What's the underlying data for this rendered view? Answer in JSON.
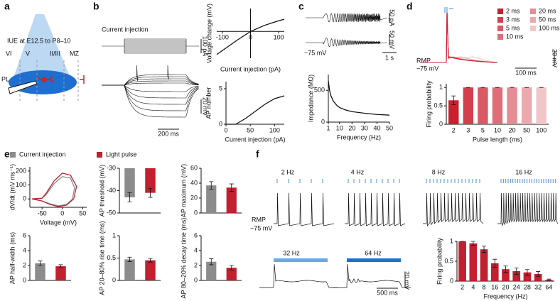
{
  "panel_labels": [
    "a",
    "b",
    "c",
    "d",
    "e",
    "f"
  ],
  "schematic": {
    "title": "IUE at E12.5 to P8–10",
    "layers": [
      "VI",
      "V",
      "II/III",
      "MZ"
    ],
    "region": "PL"
  },
  "traces": {
    "b_stim": "Current injection",
    "b_stim_scale": "100 pA",
    "b_v_scale": "20 mV",
    "b_t_scale": "200 ms",
    "c_i_scale": "50 pA",
    "c_v_scale": "50 mV",
    "c_rest": "−75 mV",
    "c_t_scale": "1 s",
    "d_rmp": "RMP",
    "d_rest": "−75 mV",
    "d_t_scale": "100 ms",
    "d_v_scale": "20 mV",
    "d_legend": [
      {
        "label": "2 ms",
        "color": "#c8202f"
      },
      {
        "label": "3 ms",
        "color": "#d2404c"
      },
      {
        "label": "5 ms",
        "color": "#d95a65"
      },
      {
        "label": "10 ms",
        "color": "#de6e78"
      },
      {
        "label": "20 ms",
        "color": "#e58c94"
      },
      {
        "label": "50 ms",
        "color": "#eba9ae"
      },
      {
        "label": "100 ms",
        "color": "#f0c6c9"
      }
    ],
    "f_rates": [
      "2 Hz",
      "4 Hz",
      "8 Hz",
      "16 Hz",
      "32 Hz",
      "64 Hz"
    ],
    "f_rmp": "RMP",
    "f_rest": "−75 mV",
    "f_v_scale": "20 mV",
    "f_t_scale": "500 ms"
  },
  "legend": {
    "items": [
      {
        "label": "Current injection",
        "color": "#8c8c8c"
      },
      {
        "label": "Light pulse",
        "color": "#c0202f"
      }
    ]
  },
  "chart_data": [
    {
      "type": "line",
      "xlabel": "Current injection (pA)",
      "ylabel": "Voltage change (mV)",
      "axes_cross_zero": true,
      "x": [
        -120,
        -100,
        -50,
        0,
        50,
        100,
        120
      ],
      "values": [
        -30,
        -25,
        -12,
        0,
        8,
        14,
        16
      ],
      "color": "#111111",
      "xlim": [
        -120,
        120
      ],
      "xticks": [
        -100,
        0,
        100
      ],
      "ylim": [
        -35,
        30
      ]
    },
    {
      "type": "line",
      "xlabel": "Current injection (pA)",
      "ylabel": "AP number",
      "x": [
        0,
        20,
        40,
        60,
        80,
        100,
        120
      ],
      "values": [
        0,
        0,
        0.8,
        1.8,
        2.8,
        3.6,
        4
      ],
      "color": "#111111",
      "xlim": [
        0,
        120
      ],
      "xticks": [
        0,
        50,
        100
      ],
      "ylim": [
        0,
        6
      ],
      "yticks": [
        0,
        5
      ]
    },
    {
      "type": "line",
      "xlabel": "Frequency (Hz)",
      "ylabel": "Impedance (MΩ)",
      "x": [
        1,
        2,
        3,
        5,
        8,
        10,
        15,
        20,
        30,
        40,
        50
      ],
      "values": [
        650,
        500,
        420,
        330,
        260,
        230,
        190,
        165,
        140,
        120,
        110
      ],
      "color": "#111111",
      "xlim": [
        1,
        50
      ],
      "xticks": [
        1,
        10,
        20,
        30,
        40,
        50
      ],
      "ylim": [
        0,
        750
      ],
      "yticks": [
        0,
        500
      ]
    },
    {
      "type": "bar",
      "xlabel": "Pulse length (ms)",
      "ylabel": "Firing probability",
      "categories": [
        "2",
        "3",
        "5",
        "10",
        "20",
        "50",
        "100"
      ],
      "values": [
        0.65,
        1,
        1,
        1,
        1,
        1,
        1
      ],
      "errors": [
        0.12,
        0,
        0,
        0,
        0,
        0,
        0
      ],
      "colors": [
        "#c8202f",
        "#d2404c",
        "#d95a65",
        "#de6e78",
        "#e58c94",
        "#eba9ae",
        "#f0c6c9"
      ],
      "ylim": [
        0,
        1.1
      ],
      "yticks": [
        0,
        0.5,
        1
      ]
    },
    {
      "type": "line",
      "xlabel": "Voltage (mV)",
      "ylabel": "dV/dt (mV ms⁻¹)",
      "series": [
        {
          "color": "#8c8c8c",
          "x": [
            -70,
            -50,
            -40,
            -20,
            0,
            20,
            30,
            25,
            10,
            -10,
            -30,
            -50,
            -70
          ],
          "values": [
            0,
            5,
            30,
            110,
            160,
            150,
            80,
            0,
            -40,
            -50,
            -35,
            -15,
            0
          ]
        },
        {
          "color": "#c0202f",
          "x": [
            -75,
            -50,
            -40,
            -20,
            0,
            20,
            35,
            28,
            10,
            -10,
            -30,
            -50,
            -75
          ],
          "values": [
            0,
            5,
            40,
            130,
            185,
            170,
            90,
            0,
            -45,
            -55,
            -40,
            -15,
            0
          ]
        }
      ],
      "xlim": [
        -80,
        60
      ],
      "xticks": [
        -50,
        0,
        50
      ],
      "ylim": [
        -60,
        230
      ],
      "yticks": [
        0,
        100,
        200
      ]
    },
    {
      "type": "bar",
      "ylabel": "AP threshold (mV)",
      "values": [
        -43,
        -41
      ],
      "errors": [
        2,
        2
      ],
      "colors": [
        "#8c8c8c",
        "#c0202f"
      ],
      "ylim": [
        -50,
        -30
      ],
      "yticks": [
        -50,
        -40,
        -30
      ]
    },
    {
      "type": "bar",
      "ylabel": "AP maximum (mV)",
      "values": [
        37,
        34
      ],
      "errors": [
        5,
        5
      ],
      "colors": [
        "#8c8c8c",
        "#c0202f"
      ],
      "ylim": [
        0,
        60
      ],
      "yticks": [
        0,
        20,
        40,
        60
      ]
    },
    {
      "type": "bar",
      "ylabel": "AP half-width (ms)",
      "values": [
        2.3,
        1.9
      ],
      "errors": [
        0.3,
        0.2
      ],
      "colors": [
        "#8c8c8c",
        "#c0202f"
      ],
      "ylim": [
        0,
        6
      ],
      "yticks": [
        0,
        2,
        4,
        6
      ]
    },
    {
      "type": "bar",
      "ylabel": "AP 20–80% rise time (ms)",
      "values": [
        0.47,
        0.45
      ],
      "errors": [
        0.05,
        0.04
      ],
      "colors": [
        "#8c8c8c",
        "#c0202f"
      ],
      "ylim": [
        0,
        1
      ],
      "yticks": [
        0,
        0.5,
        1
      ]
    },
    {
      "type": "bar",
      "ylabel": "AP 80–20% decay time (ms)",
      "values": [
        2.5,
        1.7
      ],
      "errors": [
        0.4,
        0.3
      ],
      "colors": [
        "#8c8c8c",
        "#c0202f"
      ],
      "ylim": [
        0,
        6
      ],
      "yticks": [
        0,
        2,
        4,
        6
      ]
    },
    {
      "type": "bar",
      "xlabel": "Frequency (Hz)",
      "ylabel": "Firing probability",
      "categories": [
        "2",
        "4",
        "8",
        "16",
        "20",
        "24",
        "28",
        "32",
        "64"
      ],
      "values": [
        1,
        0.95,
        0.8,
        0.45,
        0.3,
        0.25,
        0.22,
        0.18,
        0.03
      ],
      "errors": [
        0,
        0.05,
        0.08,
        0.1,
        0.08,
        0.08,
        0.07,
        0.06,
        0.02
      ],
      "color": "#c0202f",
      "ylim": [
        0,
        1
      ],
      "yticks": [
        0,
        0.5,
        1
      ]
    }
  ]
}
